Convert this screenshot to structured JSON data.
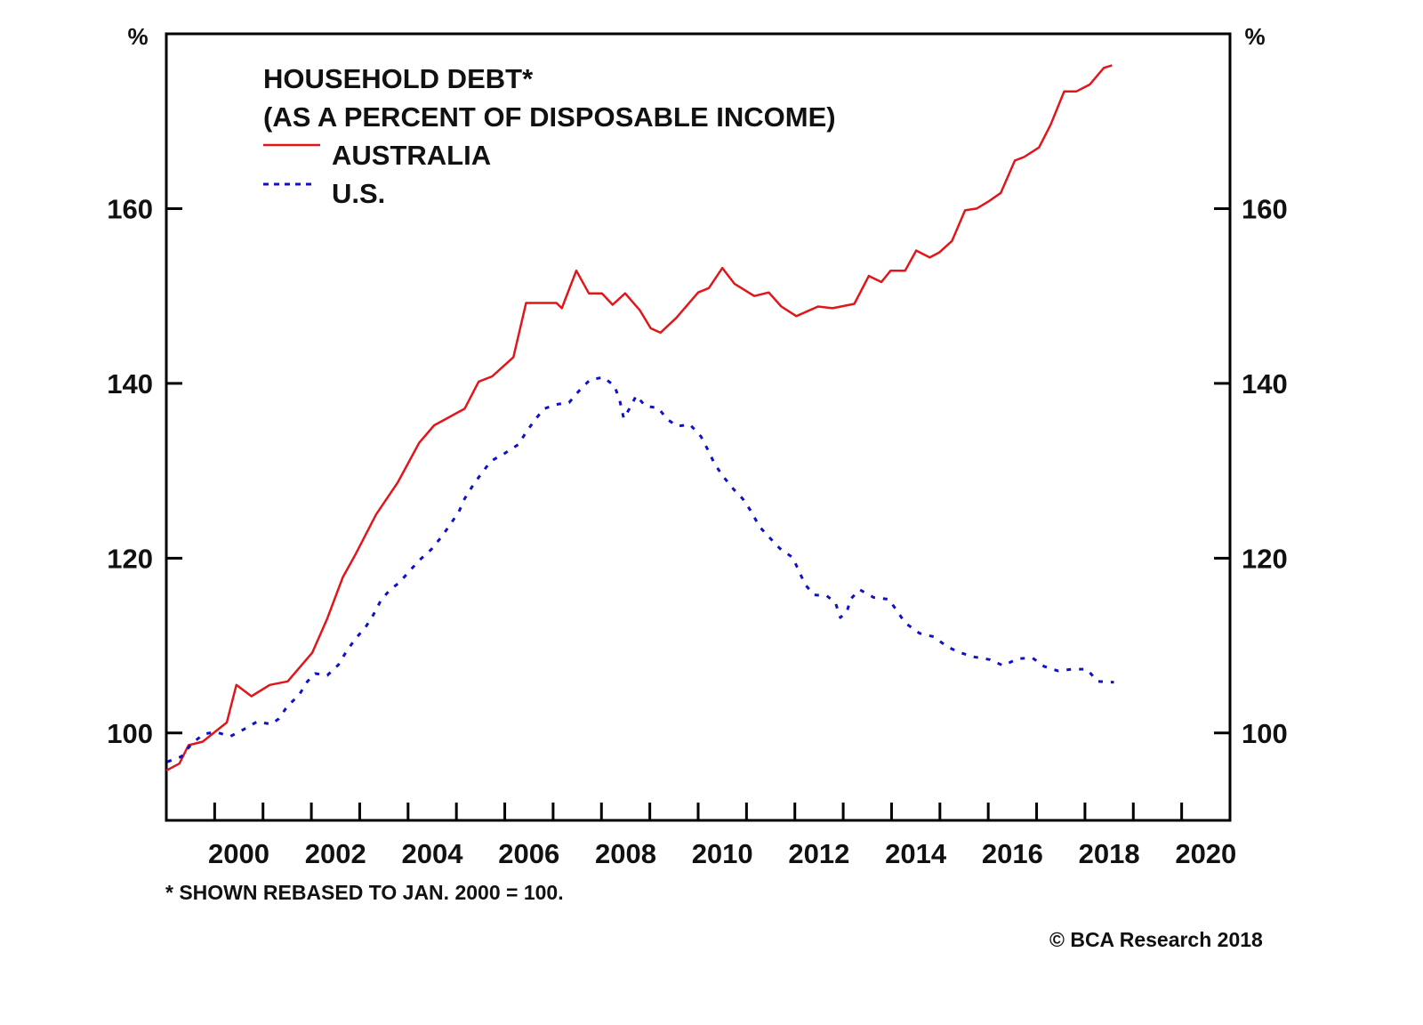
{
  "chart_data": {
    "type": "line",
    "title": "HOUSEHOLD DEBT*",
    "subtitle": "(AS A PERCENT OF DISPOSABLE INCOME)",
    "ylabel_left": "%",
    "ylabel_right": "%",
    "xlim": [
      1999,
      2021
    ],
    "ylim": [
      90,
      180
    ],
    "yticks": [
      100,
      120,
      140,
      160
    ],
    "xticks": [
      2000,
      2001,
      2002,
      2003,
      2004,
      2005,
      2006,
      2007,
      2008,
      2009,
      2010,
      2011,
      2012,
      2013,
      2014,
      2015,
      2016,
      2017,
      2018,
      2019,
      2020
    ],
    "xtick_labels": [
      "2000",
      "2002",
      "2004",
      "2006",
      "2008",
      "2010",
      "2012",
      "2014",
      "2016",
      "2018",
      "2020"
    ],
    "grid": false,
    "legend_position": "top-left",
    "series": [
      {
        "name": "AUSTRALIA",
        "color": "#e0161b",
        "style": "solid",
        "x": [
          1999.0,
          1999.27,
          1999.46,
          1999.75,
          2000.25,
          2000.45,
          2000.76,
          2001.14,
          2001.51,
          2002.02,
          2002.33,
          2002.65,
          2002.9,
          2003.34,
          2003.79,
          2004.23,
          2004.54,
          2005.17,
          2005.46,
          2005.74,
          2006.18,
          2006.44,
          2007.07,
          2007.18,
          2007.48,
          2007.74,
          2008.01,
          2008.23,
          2008.49,
          2008.79,
          2009.02,
          2009.22,
          2009.55,
          2010.0,
          2010.22,
          2010.5,
          2010.75,
          2011.16,
          2011.46,
          2011.72,
          2012.03,
          2012.48,
          2012.78,
          2013.23,
          2013.53,
          2013.79,
          2013.98,
          2014.28,
          2014.51,
          2014.79,
          2014.99,
          2015.25,
          2015.52,
          2015.76,
          2016.0,
          2016.26,
          2016.55,
          2016.74,
          2017.05,
          2017.29,
          2017.57,
          2017.82,
          2018.1,
          2018.39,
          2018.56
        ],
        "y": [
          95.7,
          96.5,
          98.6,
          99.0,
          101.2,
          105.5,
          104.2,
          105.5,
          105.9,
          109.2,
          113.1,
          117.8,
          120.3,
          125.0,
          128.7,
          133.2,
          135.2,
          137.1,
          140.2,
          140.8,
          143.0,
          149.2,
          149.2,
          148.6,
          152.9,
          150.3,
          150.3,
          149.0,
          150.3,
          148.4,
          146.3,
          145.8,
          147.5,
          150.4,
          150.9,
          153.2,
          151.4,
          150.0,
          150.4,
          148.8,
          147.7,
          148.8,
          148.6,
          149.1,
          152.3,
          151.6,
          152.9,
          152.9,
          155.2,
          154.4,
          155.0,
          156.3,
          159.8,
          160.0,
          160.8,
          161.8,
          165.5,
          165.9,
          167.0,
          169.6,
          173.4,
          173.4,
          174.2,
          176.1,
          176.4
        ]
      },
      {
        "name": "U.S.",
        "color": "#1010c8",
        "style": "dotted",
        "x": [
          1999.02,
          1999.31,
          1999.53,
          1999.78,
          2000.03,
          2000.32,
          2000.6,
          2000.88,
          2001.17,
          2001.32,
          2001.51,
          2001.74,
          2001.92,
          2002.08,
          2002.33,
          2002.56,
          2002.71,
          2002.9,
          2003.12,
          2003.28,
          2003.44,
          2003.63,
          2003.82,
          2004.04,
          2004.26,
          2004.48,
          2004.7,
          2004.89,
          2005.05,
          2005.17,
          2005.36,
          2005.52,
          2005.71,
          2006.0,
          2006.28,
          2006.44,
          2006.62,
          2006.81,
          2007.07,
          2007.33,
          2007.53,
          2007.76,
          2008.04,
          2008.27,
          2008.38,
          2008.46,
          2008.59,
          2008.72,
          2008.91,
          2009.17,
          2009.36,
          2009.57,
          2009.83,
          2010.06,
          2010.21,
          2010.34,
          2010.51,
          2010.73,
          2010.92,
          2011.09,
          2011.27,
          2011.47,
          2011.69,
          2011.95,
          2012.08,
          2012.21,
          2012.4,
          2012.66,
          2012.84,
          2012.94,
          2013.08,
          2013.15,
          2013.34,
          2013.63,
          2013.94,
          2014.11,
          2014.28,
          2014.58,
          2014.88,
          2015.14,
          2015.41,
          2015.71,
          2016.03,
          2016.31,
          2016.61,
          2016.91,
          2017.16,
          2017.44,
          2017.74,
          2018.04,
          2018.26,
          2018.6
        ],
        "y": [
          96.7,
          97.3,
          98.8,
          99.9,
          100.1,
          99.6,
          100.4,
          101.3,
          101.0,
          101.6,
          103.1,
          104.3,
          105.9,
          106.8,
          106.6,
          107.8,
          109.2,
          110.7,
          112.1,
          113.5,
          115.2,
          116.4,
          117.2,
          118.6,
          119.9,
          121.0,
          122.5,
          124.0,
          125.3,
          126.8,
          128.5,
          129.7,
          131.1,
          132.0,
          133.0,
          134.4,
          135.8,
          137.1,
          137.6,
          137.8,
          139.1,
          140.4,
          140.7,
          139.7,
          138.0,
          136.0,
          137.2,
          138.6,
          137.4,
          137.2,
          135.9,
          135.1,
          135.3,
          133.9,
          132.3,
          130.8,
          129.4,
          127.9,
          126.8,
          125.4,
          123.6,
          122.4,
          121.1,
          120.1,
          118.6,
          117.0,
          115.8,
          115.7,
          114.9,
          113.2,
          113.9,
          115.3,
          116.4,
          115.5,
          115.3,
          114.0,
          112.6,
          111.4,
          111.0,
          109.9,
          109.2,
          108.7,
          108.4,
          107.7,
          108.5,
          108.6,
          107.6,
          107.1,
          107.3,
          107.3,
          105.9,
          105.8
        ]
      }
    ]
  },
  "footnote": "* SHOWN REBASED TO JAN. 2000 = 100.",
  "copyright": "© BCA Research 2018"
}
